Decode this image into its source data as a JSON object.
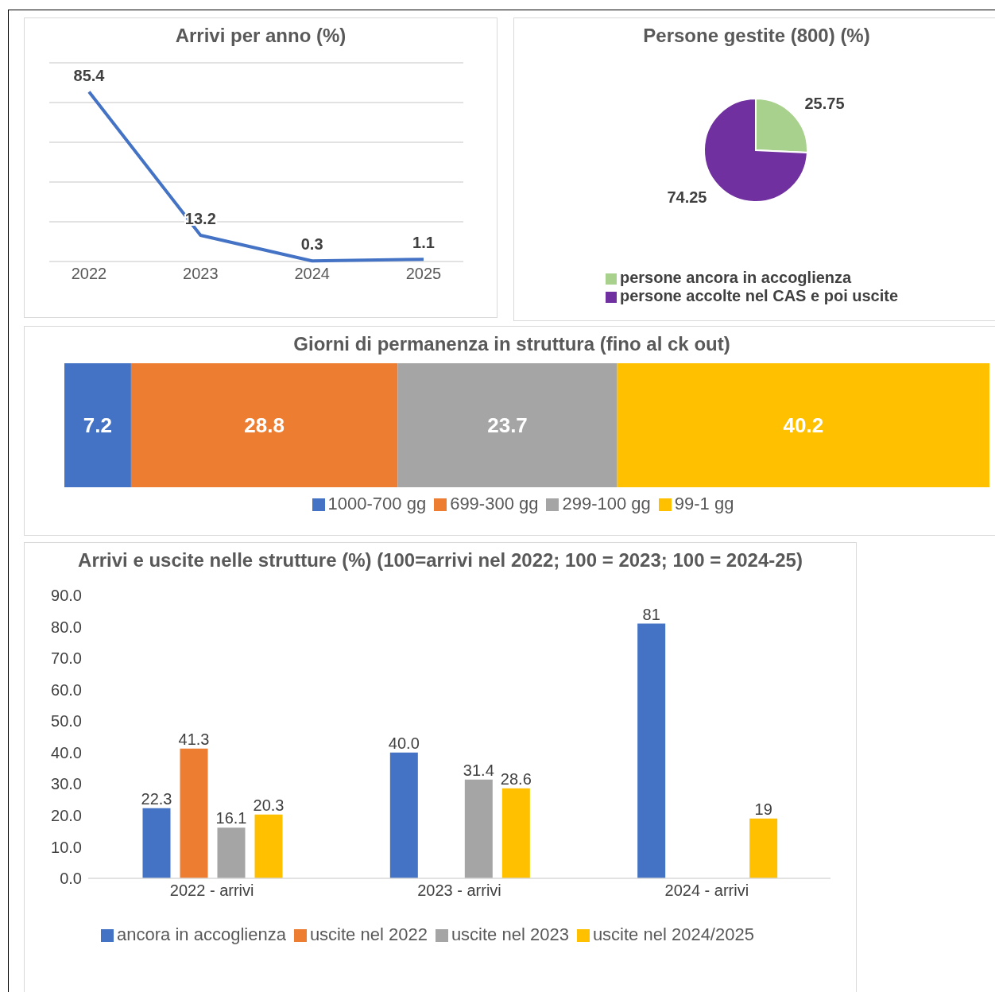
{
  "chart_data": [
    {
      "type": "line",
      "title": "Arrivi per anno (%)",
      "categories": [
        "2022",
        "2023",
        "2024",
        "2025"
      ],
      "values": [
        85.4,
        13.2,
        0.3,
        1.1
      ],
      "color": "#4472c4",
      "tick_labels": "x",
      "grid": "y",
      "data_labels": true,
      "marker": "none"
    },
    {
      "type": "pie",
      "title": "Persone gestite (800) (%)",
      "categories": [
        "persone ancora in accoglienza",
        "persone accolte nel CAS e poi uscite"
      ],
      "values": [
        25.75,
        74.25
      ],
      "colors": [
        "#a9d18e",
        "#7030a0"
      ],
      "data_labels": true,
      "legend": "bottom"
    },
    {
      "type": "bar",
      "title": "Giorni di permanenza in struttura (fino al ck out)",
      "orientation": "horizontal",
      "stacked": true,
      "categories": [
        null
      ],
      "series": [
        {
          "name": "1000-700 gg",
          "color": "#4472c4",
          "values": [
            7.2
          ]
        },
        {
          "name": "699-300 gg",
          "color": "#ed7d31",
          "values": [
            28.8
          ]
        },
        {
          "name": "299-100 gg",
          "color": "#a5a5a5",
          "values": [
            23.7
          ]
        },
        {
          "name": "99-1 gg",
          "color": "#ffc000",
          "values": [
            40.2
          ]
        }
      ],
      "data_labels": true,
      "legend": "bottom"
    },
    {
      "type": "bar",
      "title": "Arrivi e uscite nelle strutture (%) (100=arrivi nel 2022; 100 = 2023; 100 = 2024-25)",
      "categories": [
        "2022 - arrivi",
        "2023 - arrivi",
        "2024 - arrivi"
      ],
      "series": [
        {
          "name": "ancora in accoglienza",
          "color": "#4472c4",
          "values": [
            22.3,
            40.0,
            81
          ],
          "value_labels": [
            "22.3",
            "40.0",
            "81"
          ]
        },
        {
          "name": "uscite nel 2022",
          "color": "#ed7d31",
          "values": [
            41.3,
            null,
            null
          ],
          "value_labels": [
            "41.3",
            null,
            null
          ]
        },
        {
          "name": "uscite nel 2023",
          "color": "#a5a5a5",
          "values": [
            16.1,
            31.4,
            null
          ],
          "value_labels": [
            "16.1",
            "31.4",
            null
          ]
        },
        {
          "name": "uscite nel 2024/2025",
          "color": "#ffc000",
          "values": [
            20.3,
            28.6,
            19
          ],
          "value_labels": [
            "20.3",
            "28.6",
            "19"
          ]
        }
      ],
      "ylim": [
        0,
        90
      ],
      "yticks": [
        {
          "value": 0,
          "label": "0.0"
        },
        {
          "value": 10,
          "label": "10.0"
        },
        {
          "value": 20,
          "label": "20.0"
        },
        {
          "value": 30,
          "label": "30.0"
        },
        {
          "value": 40,
          "label": "40.0"
        },
        {
          "value": 50,
          "label": "50.0"
        },
        {
          "value": 60,
          "label": "60.0"
        },
        {
          "value": 70,
          "label": "70.0"
        },
        {
          "value": 80,
          "label": "80.0"
        },
        {
          "value": 90,
          "label": "90.0"
        }
      ],
      "grid": false,
      "legend": "bottom"
    }
  ]
}
